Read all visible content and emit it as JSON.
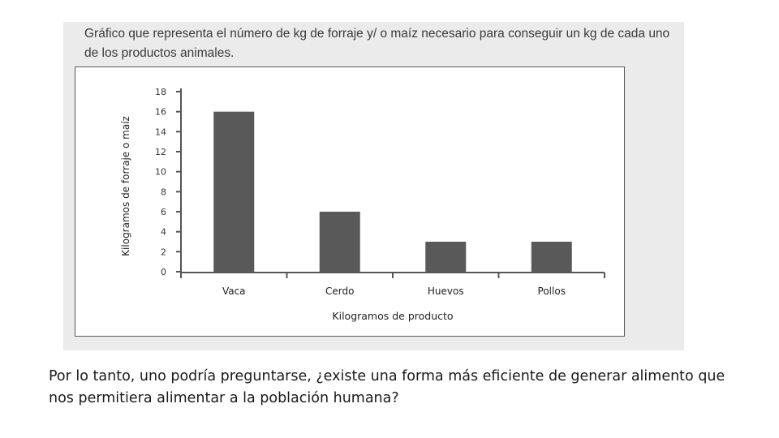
{
  "caption": "Gráfico que representa el número de kg de forraje y/ o maíz necesario para conseguir un kg de cada uno de los productos animales.",
  "chart_data": {
    "type": "bar",
    "categories": [
      "Vaca",
      "Cerdo",
      "Huevos",
      "Pollos"
    ],
    "values": [
      16,
      6,
      3,
      3
    ],
    "yticks": [
      0,
      2,
      4,
      6,
      8,
      10,
      12,
      14,
      16,
      18
    ],
    "ylim": [
      0,
      18
    ],
    "xlabel": "Kilogramos de producto",
    "ylabel": "Kilogramos de forraje o maíz",
    "title": "",
    "bar_color": "#595959"
  },
  "footer": "Por lo tanto, uno podría preguntarse, ¿existe una forma más eficiente de generar alimento que nos permitiera alimentar a la población humana?"
}
